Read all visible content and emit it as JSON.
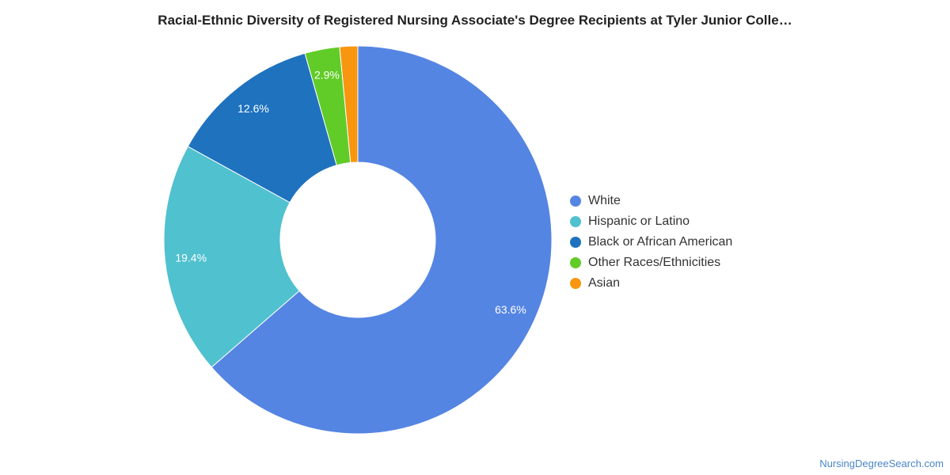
{
  "chart_data": {
    "type": "pie",
    "title": "Racial-Ethnic Diversity of Registered Nursing Associate's Degree Recipients at Tyler Junior Colle…",
    "donut": true,
    "legend_position": "right",
    "categories": [
      "White",
      "Hispanic or Latino",
      "Black or African American",
      "Other Races/Ethnicities",
      "Asian"
    ],
    "values": [
      63.6,
      19.4,
      12.6,
      2.9,
      1.5
    ],
    "labels": [
      "63.6%",
      "19.4%",
      "12.6%",
      "2.9%",
      ""
    ],
    "colors": [
      "#5585e2",
      "#50c1cf",
      "#1f72be",
      "#61cc28",
      "#f8960f"
    ]
  },
  "footer": {
    "source": "NursingDegreeSearch.com"
  }
}
